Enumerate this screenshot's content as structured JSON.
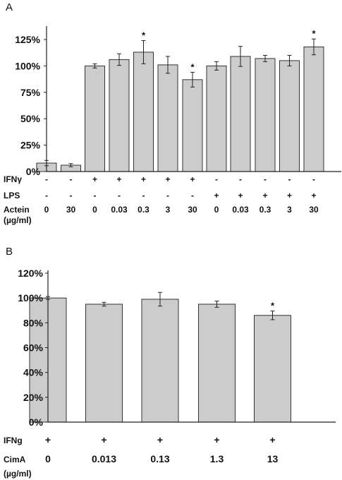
{
  "chart_data": [
    {
      "panel": "A",
      "type": "bar",
      "ylim": [
        0,
        1.35
      ],
      "yticks": [
        {
          "value": 0,
          "label": "0%"
        },
        {
          "value": 0.25,
          "label": "25%"
        },
        {
          "value": 0.5,
          "label": "50%"
        },
        {
          "value": 0.75,
          "label": "75%"
        },
        {
          "value": 1.0,
          "label": "100%"
        },
        {
          "value": 1.25,
          "label": "125%"
        }
      ],
      "values": [
        0.08,
        0.06,
        1.0,
        1.06,
        1.13,
        1.01,
        0.87,
        1.0,
        1.09,
        1.07,
        1.05,
        1.18
      ],
      "errors": [
        0.025,
        0.015,
        0.02,
        0.055,
        0.11,
        0.08,
        0.07,
        0.04,
        0.095,
        0.03,
        0.05,
        0.075
      ],
      "significant": [
        false,
        false,
        false,
        false,
        true,
        false,
        true,
        false,
        false,
        false,
        false,
        true
      ],
      "star": "*",
      "bar_color": "#cccccc",
      "condition_rows": [
        {
          "label": "IFNγ",
          "values": [
            "-",
            "-",
            "+",
            "+",
            "+",
            "+",
            "+",
            "-",
            "-",
            "-",
            "-",
            "-"
          ]
        },
        {
          "label": "LPS",
          "values": [
            "-",
            "-",
            "-",
            "-",
            "-",
            "-",
            "-",
            "+",
            "+",
            "+",
            "+",
            "+"
          ]
        },
        {
          "label": "Actein",
          "sublabel": "(µg/ml)",
          "values": [
            "0",
            "30",
            "0",
            "0.03",
            "0.3",
            "3",
            "30",
            "0",
            "0.03",
            "0.3",
            "3",
            "30"
          ]
        }
      ]
    },
    {
      "panel": "B",
      "type": "bar",
      "ylim": [
        0,
        1.2
      ],
      "yticks": [
        {
          "value": 0,
          "label": "0%"
        },
        {
          "value": 0.2,
          "label": "20%"
        },
        {
          "value": 0.4,
          "label": "40%"
        },
        {
          "value": 0.6,
          "label": "60%"
        },
        {
          "value": 0.8,
          "label": "80%"
        },
        {
          "value": 1.0,
          "label": "100%"
        },
        {
          "value": 1.2,
          "label": "120%"
        }
      ],
      "values": [
        1.0,
        0.95,
        0.99,
        0.95,
        0.86
      ],
      "errors": [
        0.012,
        0.015,
        0.055,
        0.025,
        0.035
      ],
      "significant": [
        false,
        false,
        false,
        false,
        true
      ],
      "star": "*",
      "bar_color": "#cccccc",
      "condition_rows": [
        {
          "label": "IFNg",
          "values": [
            "+",
            "+",
            "+",
            "+",
            "+"
          ]
        },
        {
          "label": "CimA",
          "sublabel": "(µg/ml)",
          "values": [
            "0",
            "0.013",
            "0.13",
            "1.3",
            "13"
          ]
        }
      ]
    }
  ]
}
